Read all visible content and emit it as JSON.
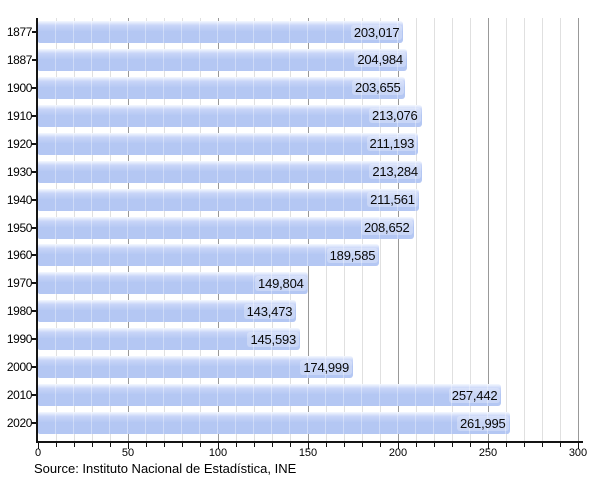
{
  "chart_data": {
    "type": "bar",
    "orientation": "horizontal",
    "title": "",
    "xlabel": "",
    "ylabel": "",
    "categories": [
      "1877",
      "1887",
      "1900",
      "1910",
      "1920",
      "1930",
      "1940",
      "1950",
      "1960",
      "1970",
      "1980",
      "1990",
      "2000",
      "2010",
      "2020"
    ],
    "values": [
      203017,
      204984,
      203655,
      213076,
      211193,
      213284,
      211561,
      208652,
      189585,
      149804,
      143473,
      145593,
      174999,
      257442,
      261995
    ],
    "value_labels": [
      "203,017",
      "204,984",
      "203,655",
      "213,076",
      "211,193",
      "213,284",
      "211,561",
      "208,652",
      "189,585",
      "149,804",
      "143,473",
      "145,593",
      "174,999",
      "257,442",
      "261,995"
    ],
    "xlim": [
      0,
      300
    ],
    "x_axis_unit_divisor": 1000,
    "x_major_ticks": [
      0,
      50,
      100,
      150,
      200,
      250,
      300
    ],
    "x_minor_tick_step": 10,
    "grid": "vertical",
    "legend": "none",
    "colors": {
      "bar_main": "#b4c7f3",
      "bar_mid": "#c8d5f8",
      "bar_top": "#f4f8ff",
      "axis": "#141414",
      "grid_minor": "#e0e0e0",
      "grid_major": "#999999",
      "text": "#000000"
    }
  },
  "footer": {
    "source": "Source: Instituto Nacional de Estadística, INE"
  }
}
